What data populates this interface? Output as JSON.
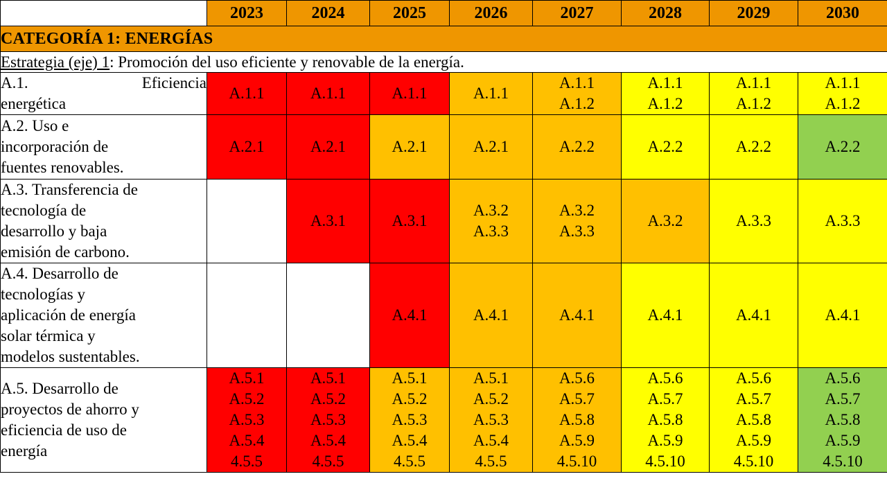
{
  "years": [
    "2023",
    "2024",
    "2025",
    "2026",
    "2027",
    "2028",
    "2029",
    "2030"
  ],
  "category": "CATEGORÍA 1: ENERGÍAS",
  "strategy": {
    "label": "Estrategia (eje) 1",
    "text": ": Promoción del uso eficiente y renovable de la energía."
  },
  "colors": {
    "red": "#ff0000",
    "orange": "#ffc000",
    "yellow": "#ffff00",
    "green": "#92d050",
    "header_orange": "#ef9600"
  },
  "lines": [
    {
      "title_parts": [
        "A.1.",
        "Eficiencia"
      ],
      "title_rest": "energética",
      "cells": [
        {
          "color": "red",
          "items": [
            "A.1.1"
          ]
        },
        {
          "color": "red",
          "items": [
            "A.1.1"
          ]
        },
        {
          "color": "red",
          "items": [
            "A.1.1"
          ]
        },
        {
          "color": "orange",
          "items": [
            "A.1.1"
          ]
        },
        {
          "color": "orange",
          "items": [
            "A.1.1",
            "A.1.2"
          ]
        },
        {
          "color": "yellow",
          "items": [
            "A.1.1",
            "A.1.2"
          ]
        },
        {
          "color": "yellow",
          "items": [
            "A.1.1",
            "A.1.2"
          ]
        },
        {
          "color": "yellow",
          "items": [
            "A.1.1",
            "A.1.2"
          ]
        }
      ]
    },
    {
      "title_lines": [
        "A.2. Uso e",
        "incorporación de",
        "fuentes renovables."
      ],
      "cells": [
        {
          "color": "red",
          "items": [
            "A.2.1"
          ]
        },
        {
          "color": "red",
          "items": [
            "A.2.1"
          ]
        },
        {
          "color": "orange",
          "items": [
            "A.2.1"
          ]
        },
        {
          "color": "orange",
          "items": [
            "A.2.1"
          ]
        },
        {
          "color": "orange",
          "items": [
            "A.2.2"
          ]
        },
        {
          "color": "yellow",
          "items": [
            "A.2.2"
          ]
        },
        {
          "color": "yellow",
          "items": [
            "A.2.2"
          ]
        },
        {
          "color": "green",
          "items": [
            "A.2.2"
          ]
        }
      ]
    },
    {
      "title_lines": [
        "A.3. Transferencia de",
        "tecnología de",
        "desarrollo y baja",
        "emisión de carbono."
      ],
      "cells": [
        {
          "color": "white",
          "items": []
        },
        {
          "color": "red",
          "items": [
            "A.3.1"
          ]
        },
        {
          "color": "red",
          "items": [
            "A.3.1"
          ]
        },
        {
          "color": "orange",
          "items": [
            "A.3.2",
            "A.3.3"
          ]
        },
        {
          "color": "orange",
          "items": [
            "A.3.2",
            "A.3.3"
          ]
        },
        {
          "color": "orange",
          "items": [
            "A.3.2"
          ]
        },
        {
          "color": "yellow",
          "items": [
            "A.3.3"
          ]
        },
        {
          "color": "yellow",
          "items": [
            "A.3.3"
          ]
        }
      ]
    },
    {
      "title_lines": [
        "A.4. Desarrollo de",
        "tecnologías y",
        "aplicación de energía",
        "solar térmica y",
        "modelos sustentables."
      ],
      "cells": [
        {
          "color": "white",
          "items": []
        },
        {
          "color": "white",
          "items": []
        },
        {
          "color": "red",
          "items": [
            "A.4.1"
          ]
        },
        {
          "color": "orange",
          "items": [
            "A.4.1"
          ]
        },
        {
          "color": "orange",
          "items": [
            "A.4.1"
          ]
        },
        {
          "color": "yellow",
          "items": [
            "A.4.1"
          ]
        },
        {
          "color": "yellow",
          "items": [
            "A.4.1"
          ]
        },
        {
          "color": "yellow",
          "items": [
            "A.4.1"
          ]
        }
      ]
    },
    {
      "title_lines": [
        "A.5. Desarrollo de",
        "proyectos de ahorro y",
        "eficiencia de uso de",
        "energía"
      ],
      "cells": [
        {
          "color": "red",
          "items": [
            "A.5.1",
            "A.5.2",
            "A.5.3",
            "A.5.4",
            "4.5.5"
          ]
        },
        {
          "color": "red",
          "items": [
            "A.5.1",
            "A.5.2",
            "A.5.3",
            "A.5.4",
            "4.5.5"
          ]
        },
        {
          "color": "orange",
          "items": [
            "A.5.1",
            "A.5.2",
            "A.5.3",
            "A.5.4",
            "4.5.5"
          ]
        },
        {
          "color": "orange",
          "items": [
            "A.5.1",
            "A.5.2",
            "A.5.3",
            "A.5.4",
            "4.5.5"
          ]
        },
        {
          "color": "orange",
          "items": [
            "A.5.6",
            "A.5.7",
            "A.5.8",
            "A.5.9",
            "4.5.10"
          ]
        },
        {
          "color": "yellow",
          "items": [
            "A.5.6",
            "A.5.7",
            "A.5.8",
            "A.5.9",
            "4.5.10"
          ]
        },
        {
          "color": "yellow",
          "items": [
            "A.5.6",
            "A.5.7",
            "A.5.8",
            "A.5.9",
            "4.5.10"
          ]
        },
        {
          "color": "green",
          "items": [
            "A.5.6",
            "A.5.7",
            "A.5.8",
            "A.5.9",
            "4.5.10"
          ]
        }
      ]
    }
  ]
}
